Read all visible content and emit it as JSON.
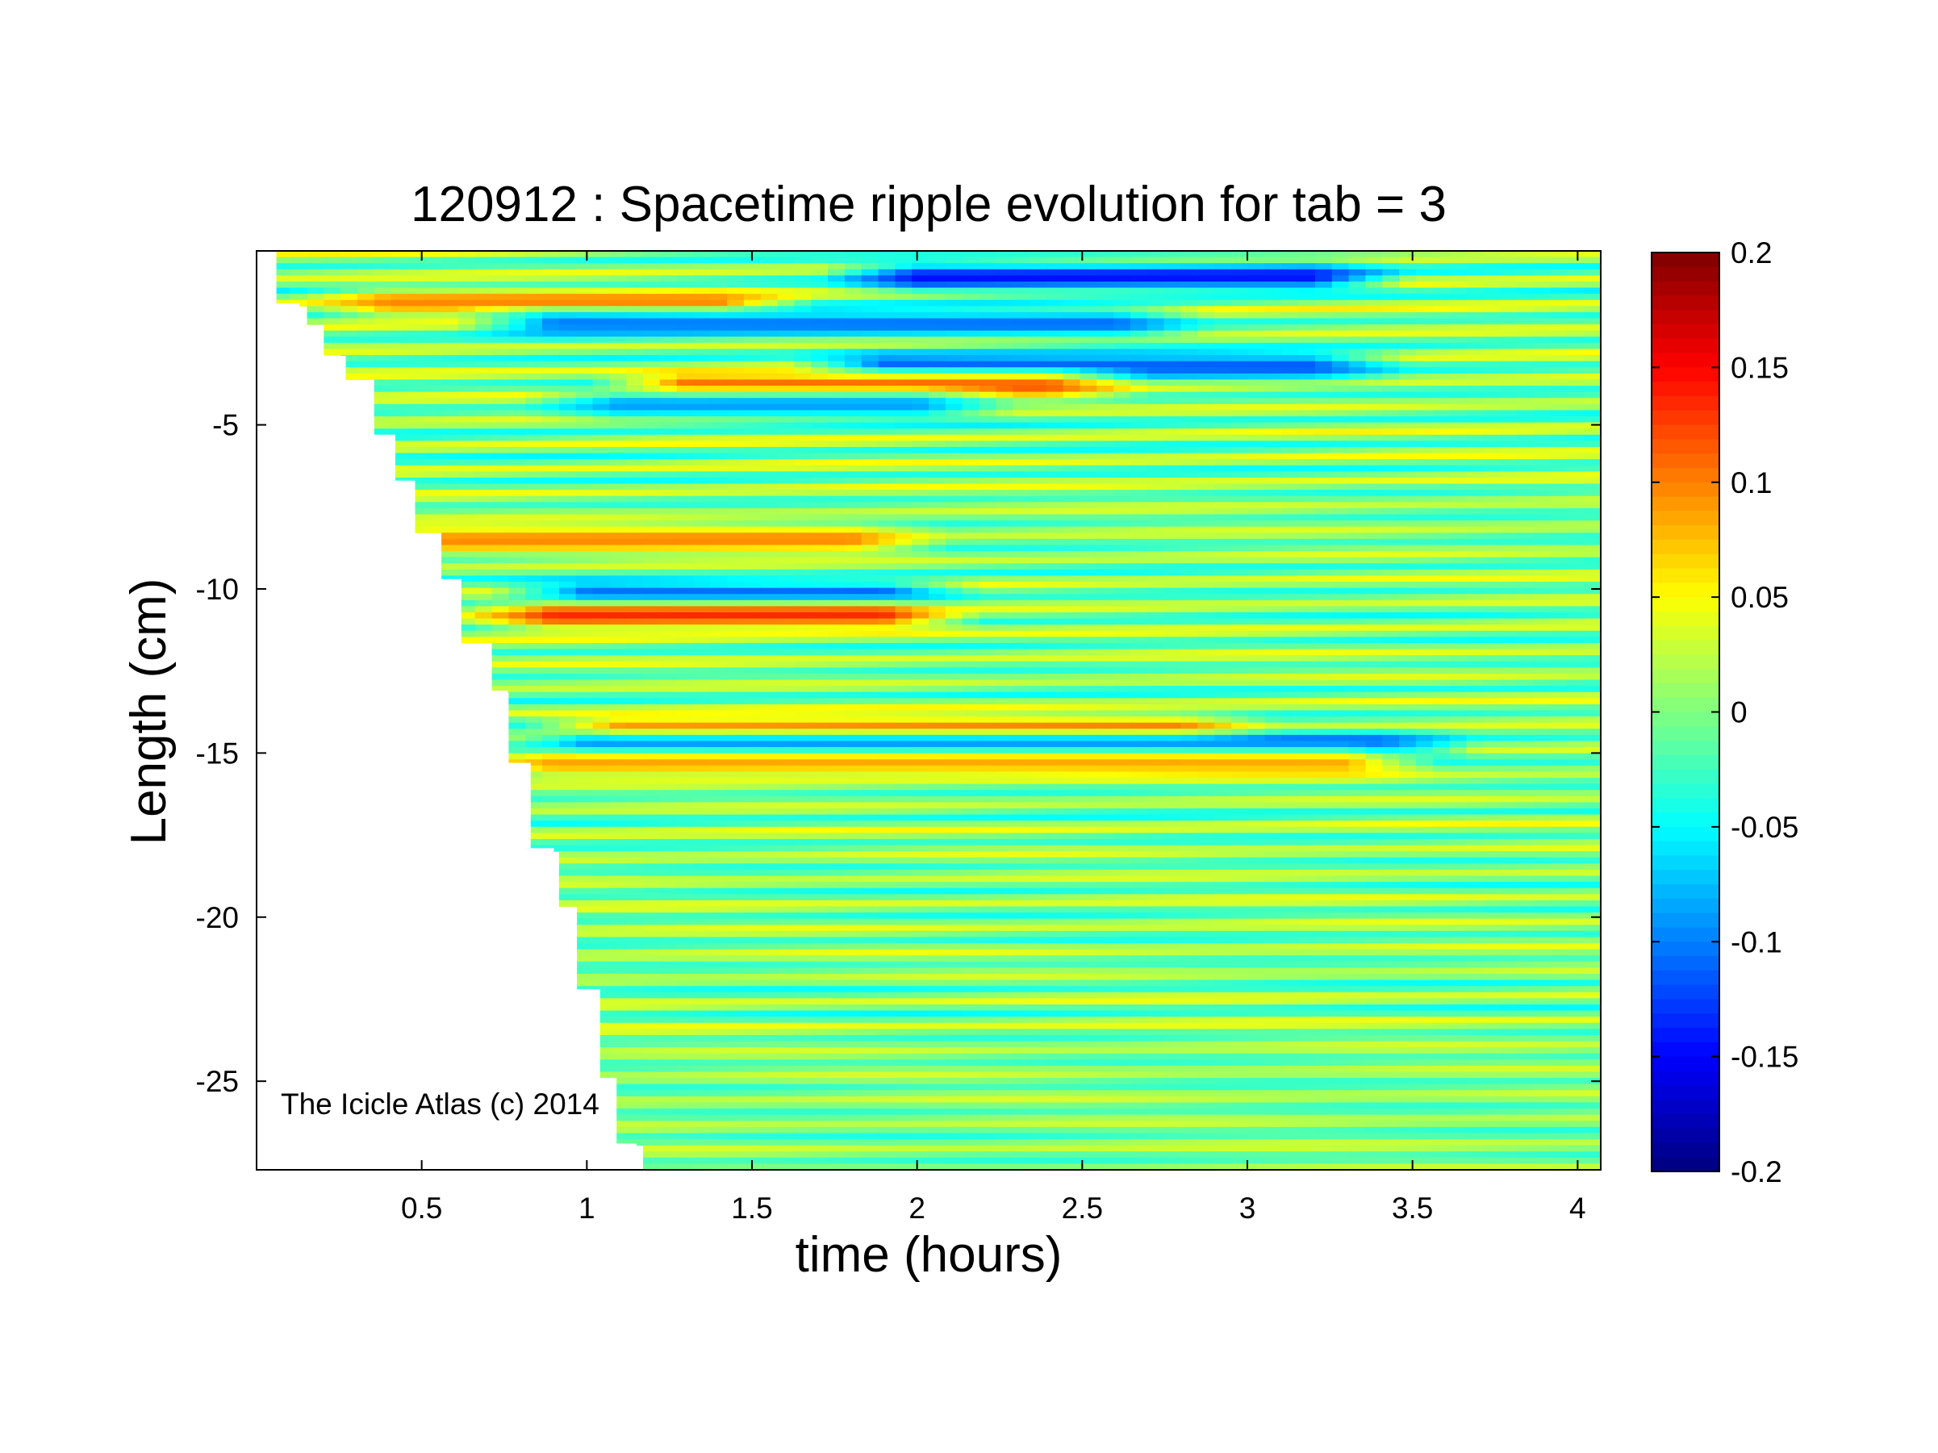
{
  "chart_data": {
    "type": "heatmap",
    "title": "120912 : Spacetime ripple evolution for tab = 3",
    "xlabel": "time (hours)",
    "ylabel": "Length (cm)",
    "xlim": [
      0.0,
      4.07
    ],
    "ylim": [
      -27.7,
      0.3
    ],
    "x_ticks": [
      0.5,
      1,
      1.5,
      2,
      2.5,
      3,
      3.5,
      4
    ],
    "x_tick_labels": [
      "0.5",
      "1",
      "1.5",
      "2",
      "2.5",
      "3",
      "3.5",
      "4"
    ],
    "y_ticks": [
      -5,
      -10,
      -15,
      -20,
      -25
    ],
    "y_tick_labels": [
      "-5",
      "-10",
      "-15",
      "-20",
      "-25"
    ],
    "colorbar": {
      "colormap": "jet",
      "clim": [
        -0.2,
        0.2
      ],
      "ticks": [
        0.2,
        0.15,
        0.1,
        0.05,
        0,
        -0.05,
        -0.1,
        -0.15,
        -0.2
      ],
      "tick_labels": [
        "0.2",
        "0.15",
        "0.1",
        "0.05",
        "0",
        "-0.05",
        "-0.1",
        "-0.15",
        "-0.2"
      ]
    },
    "annotation": "The Icicle Atlas (c) 2014",
    "ripple_bands": {
      "description_note": "",
      "period_cm": 0.74,
      "onset_front": [
        [
          0.06,
          -1.3
        ],
        [
          0.13,
          -2.0
        ],
        [
          0.2,
          -2.9
        ],
        [
          0.27,
          -3.7
        ],
        [
          0.35,
          -5.3
        ],
        [
          0.42,
          -6.7
        ],
        [
          0.48,
          -8.3
        ],
        [
          0.55,
          -9.7
        ],
        [
          0.62,
          -11.7
        ],
        [
          0.69,
          -13.1
        ],
        [
          0.76,
          -15.3
        ],
        [
          0.83,
          -17.9
        ],
        [
          0.9,
          -19.7
        ],
        [
          0.97,
          -22.2
        ],
        [
          1.04,
          -24.9
        ],
        [
          1.09,
          -26.9
        ],
        [
          1.15,
          -27.7
        ]
      ],
      "strong_features": [
        {
          "y": -0.5,
          "x_start": 2.0,
          "x_end": 3.2,
          "value": -0.15
        },
        {
          "y": -1.3,
          "x_start": 0.4,
          "x_end": 1.4,
          "value": 0.1
        },
        {
          "y": -1.9,
          "x_start": 0.9,
          "x_end": 2.6,
          "value": -0.11
        },
        {
          "y": -3.2,
          "x_start": 1.9,
          "x_end": 3.2,
          "value": -0.12
        },
        {
          "y": -3.8,
          "x_start": 1.3,
          "x_end": 2.4,
          "value": 0.12
        },
        {
          "y": -4.4,
          "x_start": 1.1,
          "x_end": 2.0,
          "value": -0.09
        },
        {
          "y": -8.5,
          "x_start": 0.5,
          "x_end": 1.8,
          "value": 0.1
        },
        {
          "y": -10.2,
          "x_start": 1.0,
          "x_end": 1.9,
          "value": -0.13
        },
        {
          "y": -10.8,
          "x_start": 0.9,
          "x_end": 1.9,
          "value": 0.14
        },
        {
          "y": -14.3,
          "x_start": 1.1,
          "x_end": 2.8,
          "value": 0.11
        },
        {
          "y": -14.8,
          "x_start": 1.0,
          "x_end": 3.4,
          "value": -0.13
        },
        {
          "y": -15.3,
          "x_start": 0.9,
          "x_end": 3.3,
          "value": 0.09
        }
      ]
    }
  }
}
